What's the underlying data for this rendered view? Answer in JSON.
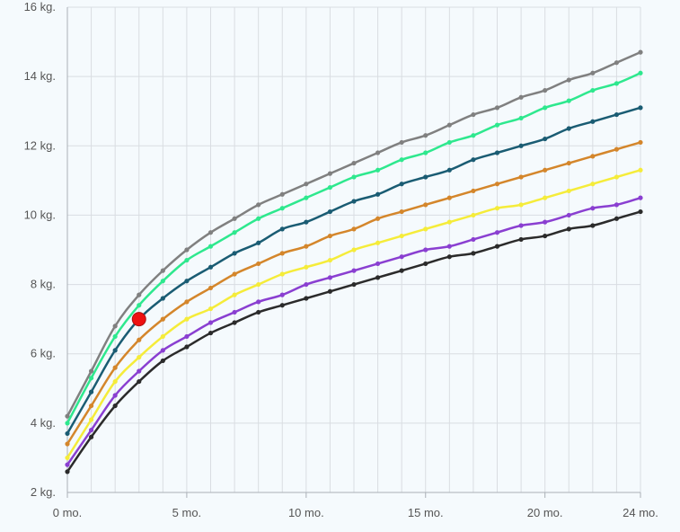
{
  "chart_data": {
    "type": "line",
    "x_tick_labels": [
      "0 mo.",
      "5 mo.",
      "10 mo.",
      "15 mo.",
      "20 mo.",
      "24 mo."
    ],
    "x_tick_values": [
      0,
      5,
      10,
      15,
      20,
      24
    ],
    "y_tick_labels": [
      "2 kg.",
      "4 kg.",
      "6 kg.",
      "8 kg.",
      "10 kg.",
      "12 kg.",
      "14 kg.",
      "16 kg."
    ],
    "y_tick_values": [
      2,
      4,
      6,
      8,
      10,
      12,
      14,
      16
    ],
    "xlim": [
      0,
      24
    ],
    "ylim": [
      2,
      16
    ],
    "grid": true,
    "x": [
      0,
      1,
      2,
      3,
      4,
      5,
      6,
      7,
      8,
      9,
      10,
      11,
      12,
      13,
      14,
      15,
      16,
      17,
      18,
      19,
      20,
      21,
      22,
      23,
      24
    ],
    "series": [
      {
        "color": "#808080",
        "values": [
          4.2,
          5.5,
          6.8,
          7.7,
          8.4,
          9.0,
          9.5,
          9.9,
          10.3,
          10.6,
          10.9,
          11.2,
          11.5,
          11.8,
          12.1,
          12.3,
          12.6,
          12.9,
          13.1,
          13.4,
          13.6,
          13.9,
          14.1,
          14.4,
          14.7
        ]
      },
      {
        "color": "#2ee88e",
        "values": [
          4.0,
          5.3,
          6.5,
          7.4,
          8.1,
          8.7,
          9.1,
          9.5,
          9.9,
          10.2,
          10.5,
          10.8,
          11.1,
          11.3,
          11.6,
          11.8,
          12.1,
          12.3,
          12.6,
          12.8,
          13.1,
          13.3,
          13.6,
          13.8,
          14.1
        ]
      },
      {
        "color": "#1a5c73",
        "values": [
          3.7,
          4.9,
          6.1,
          7.0,
          7.6,
          8.1,
          8.5,
          8.9,
          9.2,
          9.6,
          9.8,
          10.1,
          10.4,
          10.6,
          10.9,
          11.1,
          11.3,
          11.6,
          11.8,
          12.0,
          12.2,
          12.5,
          12.7,
          12.9,
          13.1
        ]
      },
      {
        "color": "#d4862b",
        "values": [
          3.4,
          4.5,
          5.6,
          6.4,
          7.0,
          7.5,
          7.9,
          8.3,
          8.6,
          8.9,
          9.1,
          9.4,
          9.6,
          9.9,
          10.1,
          10.3,
          10.5,
          10.7,
          10.9,
          11.1,
          11.3,
          11.5,
          11.7,
          11.9,
          12.1
        ]
      },
      {
        "color": "#f5ec3a",
        "values": [
          3.0,
          4.1,
          5.2,
          5.9,
          6.5,
          7.0,
          7.3,
          7.7,
          8.0,
          8.3,
          8.5,
          8.7,
          9.0,
          9.2,
          9.4,
          9.6,
          9.8,
          10.0,
          10.2,
          10.3,
          10.5,
          10.7,
          10.9,
          11.1,
          11.3
        ]
      },
      {
        "color": "#8a3fd1",
        "values": [
          2.8,
          3.8,
          4.8,
          5.5,
          6.1,
          6.5,
          6.9,
          7.2,
          7.5,
          7.7,
          8.0,
          8.2,
          8.4,
          8.6,
          8.8,
          9.0,
          9.1,
          9.3,
          9.5,
          9.7,
          9.8,
          10.0,
          10.2,
          10.3,
          10.5
        ]
      },
      {
        "color": "#2b2b2b",
        "values": [
          2.6,
          3.6,
          4.5,
          5.2,
          5.8,
          6.2,
          6.6,
          6.9,
          7.2,
          7.4,
          7.6,
          7.8,
          8.0,
          8.2,
          8.4,
          8.6,
          8.8,
          8.9,
          9.1,
          9.3,
          9.4,
          9.6,
          9.7,
          9.9,
          10.1
        ]
      }
    ],
    "highlight_point": {
      "x": 3,
      "y": 7.0,
      "color": "#ee1111"
    },
    "colors": {
      "grid": "#d9dde2",
      "axis": "#aab0b6",
      "background": "#f5fafd",
      "highlight_stroke": "#aa1111"
    }
  }
}
